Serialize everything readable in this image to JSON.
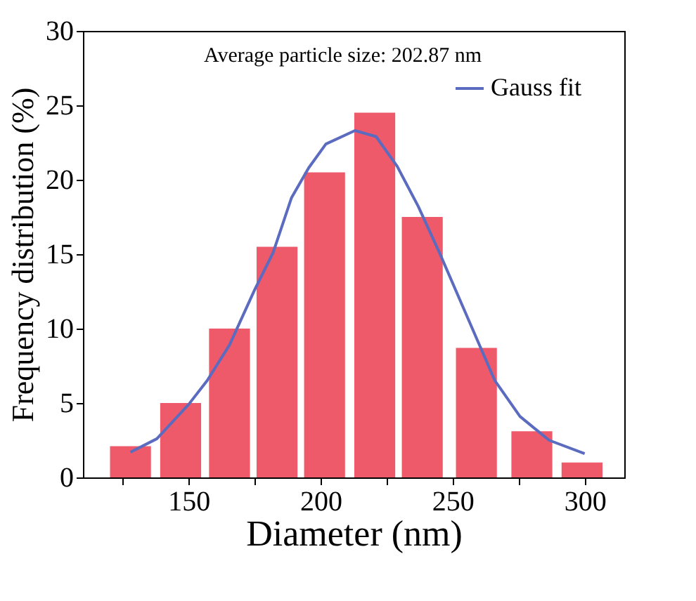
{
  "chart_data": {
    "type": "bar",
    "xlabel": "Diameter (nm)",
    "ylabel": "Frequency distribution (%)",
    "annotations": [
      "Average particle size: 202.87 nm"
    ],
    "x": [
      128,
      147,
      165.5,
      183.5,
      201.5,
      220.5,
      238.5,
      259,
      280,
      299
    ],
    "series": [
      {
        "color": "#ee5a6a",
        "values": [
          2.1,
          5.0,
          10.0,
          15.5,
          20.5,
          24.5,
          17.5,
          8.7,
          3.1,
          1.0
        ]
      },
      {
        "type": "line",
        "name": "Gauss fit",
        "color": "#5b6bbf",
        "x": [
          128,
          138,
          150,
          157,
          165.5,
          175,
          182,
          189,
          195.5,
          202,
          213,
          221,
          229,
          237,
          245,
          255.5,
          266,
          275.5,
          286.5,
          300
        ],
        "values": [
          1.7,
          2.6,
          4.9,
          6.5,
          8.9,
          12.6,
          15.1,
          18.8,
          20.8,
          22.4,
          23.3,
          22.9,
          20.9,
          18.2,
          15.1,
          10.8,
          6.5,
          4.1,
          2.5,
          1.6
        ]
      }
    ],
    "xlim": [
      110,
      315
    ],
    "xticks": [
      {
        "value": 125,
        "label": null
      },
      150,
      {
        "value": 175,
        "label": null
      },
      200,
      {
        "value": 225,
        "label": null
      },
      250,
      {
        "value": 275,
        "label": null
      },
      300
    ],
    "ylim": [
      0,
      30
    ],
    "yticks": [
      0,
      5,
      10,
      15,
      20,
      25,
      30
    ],
    "legend": "top right",
    "grid": false
  }
}
